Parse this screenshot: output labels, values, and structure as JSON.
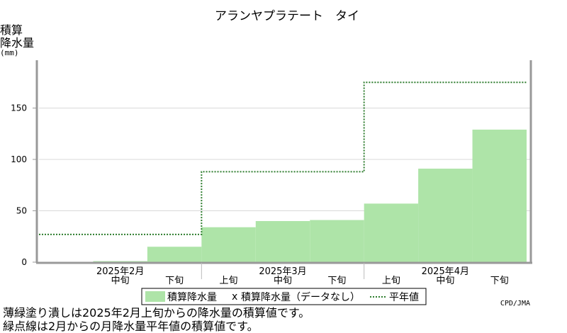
{
  "chart_data": {
    "type": "bar",
    "title": "アランヤプラテート　タイ",
    "ylabel_lines": [
      "積算",
      "降水量",
      "(mm)"
    ],
    "ylim": [
      0,
      200
    ],
    "yticks": [
      0,
      50,
      100,
      150
    ],
    "periods": [
      "2025-02-上旬",
      "2025-02-中旬",
      "2025-02-下旬",
      "2025-03-上旬",
      "2025-03-中旬",
      "2025-03-下旬",
      "2025-04-上旬",
      "2025-04-中旬",
      "2025-04-下旬"
    ],
    "x_sublabels": [
      "",
      "中旬",
      "下旬",
      "上旬",
      "中旬",
      "下旬",
      "上旬",
      "中旬",
      "下旬"
    ],
    "x_month_labels": [
      {
        "text": "2025年2月",
        "at_period": 1
      },
      {
        "text": "2025年3月",
        "at_period": 4
      },
      {
        "text": "2025年4月",
        "at_period": 7
      }
    ],
    "series": [
      {
        "name": "積算降水量",
        "type": "bar",
        "color": "#aee4a8",
        "values": [
          null,
          1,
          15,
          34,
          40,
          41,
          57,
          91,
          129
        ]
      },
      {
        "name": "積算降水量（データなし）",
        "type": "missing-marker",
        "marker": "x",
        "values": []
      },
      {
        "name": "平年値",
        "type": "step-line",
        "style": "dotted",
        "color": "#2e7d2e",
        "values": [
          27,
          27,
          27,
          88,
          88,
          88,
          175,
          175,
          175
        ]
      }
    ],
    "legend_position": "bottom",
    "grid": true
  },
  "credit": "CPD/JMA",
  "notes": [
    "薄緑塗り潰しは2025年2月上旬からの降水量の積算値です。",
    "緑点線は2月からの月降水量平年値の積算値です。"
  ]
}
